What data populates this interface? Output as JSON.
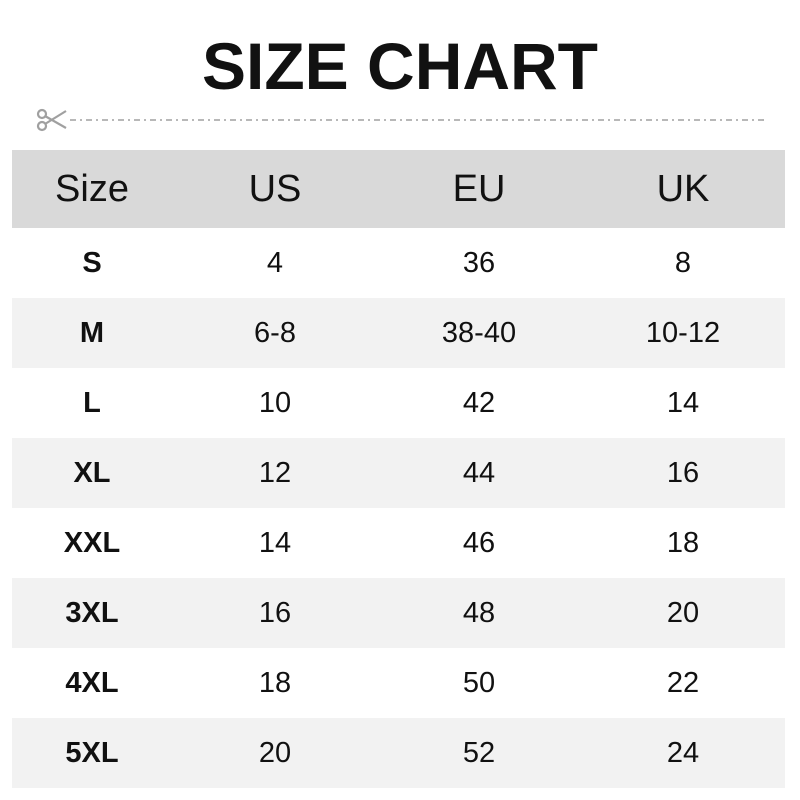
{
  "title": "SIZE CHART",
  "colors": {
    "header_bg": "#d9d9d9",
    "alt_row_bg": "#f2f2f2",
    "cut_line": "#a0a0a0"
  },
  "icons": {
    "cut": "scissors-icon"
  },
  "table": {
    "headers": [
      "Size",
      "US",
      "EU",
      "UK"
    ],
    "rows": [
      [
        "S",
        "4",
        "36",
        "8"
      ],
      [
        "M",
        "6-8",
        "38-40",
        "10-12"
      ],
      [
        "L",
        "10",
        "42",
        "14"
      ],
      [
        "XL",
        "12",
        "44",
        "16"
      ],
      [
        "XXL",
        "14",
        "46",
        "18"
      ],
      [
        "3XL",
        "16",
        "48",
        "20"
      ],
      [
        "4XL",
        "18",
        "50",
        "22"
      ],
      [
        "5XL",
        "20",
        "52",
        "24"
      ]
    ]
  }
}
